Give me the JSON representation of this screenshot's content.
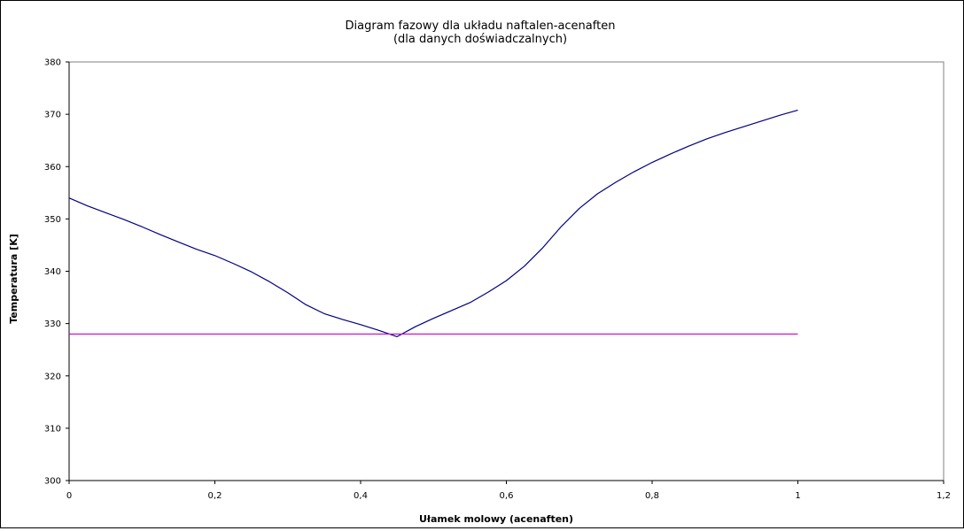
{
  "chart_data": {
    "type": "line",
    "title": "Diagram fazowy dla układu naftalen-acenaften",
    "subtitle": "(dla danych doświadczalnych)",
    "xlabel": "Ułamek molowy (acenaften)",
    "ylabel": "Temperatura [K]",
    "xlim": [
      0,
      1.2
    ],
    "ylim": [
      300,
      380
    ],
    "x_ticks": [
      "0",
      "0,2",
      "0,4",
      "0,6",
      "0,8",
      "1",
      "1,2"
    ],
    "y_ticks": [
      "300",
      "310",
      "320",
      "330",
      "340",
      "350",
      "360",
      "370",
      "380"
    ],
    "grid": false,
    "legend": "none",
    "colors": {
      "liquidus": "#000080",
      "eutectic": "#cc00cc"
    },
    "series": [
      {
        "x": [
          0,
          0.025,
          0.05,
          0.075,
          0.1,
          0.125,
          0.15,
          0.175,
          0.2,
          0.225,
          0.25,
          0.275,
          0.3,
          0.325,
          0.35,
          0.375,
          0.4,
          0.425,
          0.45,
          0.475,
          0.5,
          0.525,
          0.55,
          0.575,
          0.6,
          0.625,
          0.65,
          0.675,
          0.7,
          0.725,
          0.75,
          0.775,
          0.8,
          0.825,
          0.85,
          0.875,
          0.9,
          0.925,
          0.95,
          0.975,
          1.0
        ],
        "values": [
          354,
          352.5,
          351.2,
          349.9,
          348.5,
          347.0,
          345.6,
          344.2,
          343.0,
          341.5,
          339.9,
          338.0,
          335.9,
          333.6,
          331.9,
          330.8,
          329.8,
          328.7,
          327.5,
          329.4,
          331.0,
          332.5,
          334.0,
          336.0,
          338.2,
          341.0,
          344.5,
          348.5,
          352.0,
          354.8,
          357.0,
          359.0,
          360.8,
          362.4,
          363.9,
          365.3,
          366.5,
          367.6,
          368.7,
          369.8,
          370.8
        ]
      },
      {
        "x": [
          0,
          1.0
        ],
        "values": [
          328,
          328
        ]
      }
    ]
  }
}
